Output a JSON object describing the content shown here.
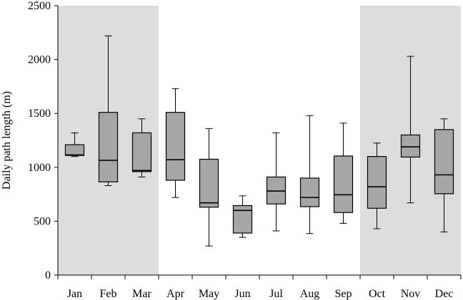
{
  "chart_data": {
    "type": "box",
    "ylabel": "Daily path length (m)",
    "ylim": [
      0,
      2500
    ],
    "yticks": [
      0,
      500,
      1000,
      1500,
      2000,
      2500
    ],
    "grid": false,
    "categories": [
      "Jan",
      "Feb",
      "Mar",
      "Apr",
      "May",
      "Jun",
      "Jul",
      "Aug",
      "Sep",
      "Oct",
      "Nov",
      "Dec"
    ],
    "shaded_periods": [
      {
        "from": "Jan",
        "to": "Mar"
      },
      {
        "from": "Oct",
        "to": "Dec"
      }
    ],
    "boxes": [
      {
        "category": "Jan",
        "min": 1100,
        "q1": 1110,
        "median": 1115,
        "q3": 1210,
        "max": 1320
      },
      {
        "category": "Feb",
        "min": 830,
        "q1": 865,
        "median": 1065,
        "q3": 1510,
        "max": 2220
      },
      {
        "category": "Mar",
        "min": 910,
        "q1": 960,
        "median": 970,
        "q3": 1320,
        "max": 1450
      },
      {
        "category": "Apr",
        "min": 720,
        "q1": 880,
        "median": 1070,
        "q3": 1510,
        "max": 1730
      },
      {
        "category": "May",
        "min": 270,
        "q1": 630,
        "median": 670,
        "q3": 1075,
        "max": 1360
      },
      {
        "category": "Jun",
        "min": 350,
        "q1": 390,
        "median": 600,
        "q3": 645,
        "max": 735
      },
      {
        "category": "Jul",
        "min": 410,
        "q1": 660,
        "median": 780,
        "q3": 910,
        "max": 1320
      },
      {
        "category": "Aug",
        "min": 385,
        "q1": 635,
        "median": 720,
        "q3": 900,
        "max": 1480
      },
      {
        "category": "Sep",
        "min": 480,
        "q1": 580,
        "median": 745,
        "q3": 1105,
        "max": 1410
      },
      {
        "category": "Oct",
        "min": 430,
        "q1": 620,
        "median": 820,
        "q3": 1100,
        "max": 1225
      },
      {
        "category": "Nov",
        "min": 670,
        "q1": 1095,
        "median": 1190,
        "q3": 1300,
        "max": 2030
      },
      {
        "category": "Dec",
        "min": 400,
        "q1": 755,
        "median": 930,
        "q3": 1350,
        "max": 1450
      }
    ],
    "colors": {
      "shade": "#dddddd",
      "box_fill": "#a6a6a6",
      "stroke": "#000000"
    }
  }
}
